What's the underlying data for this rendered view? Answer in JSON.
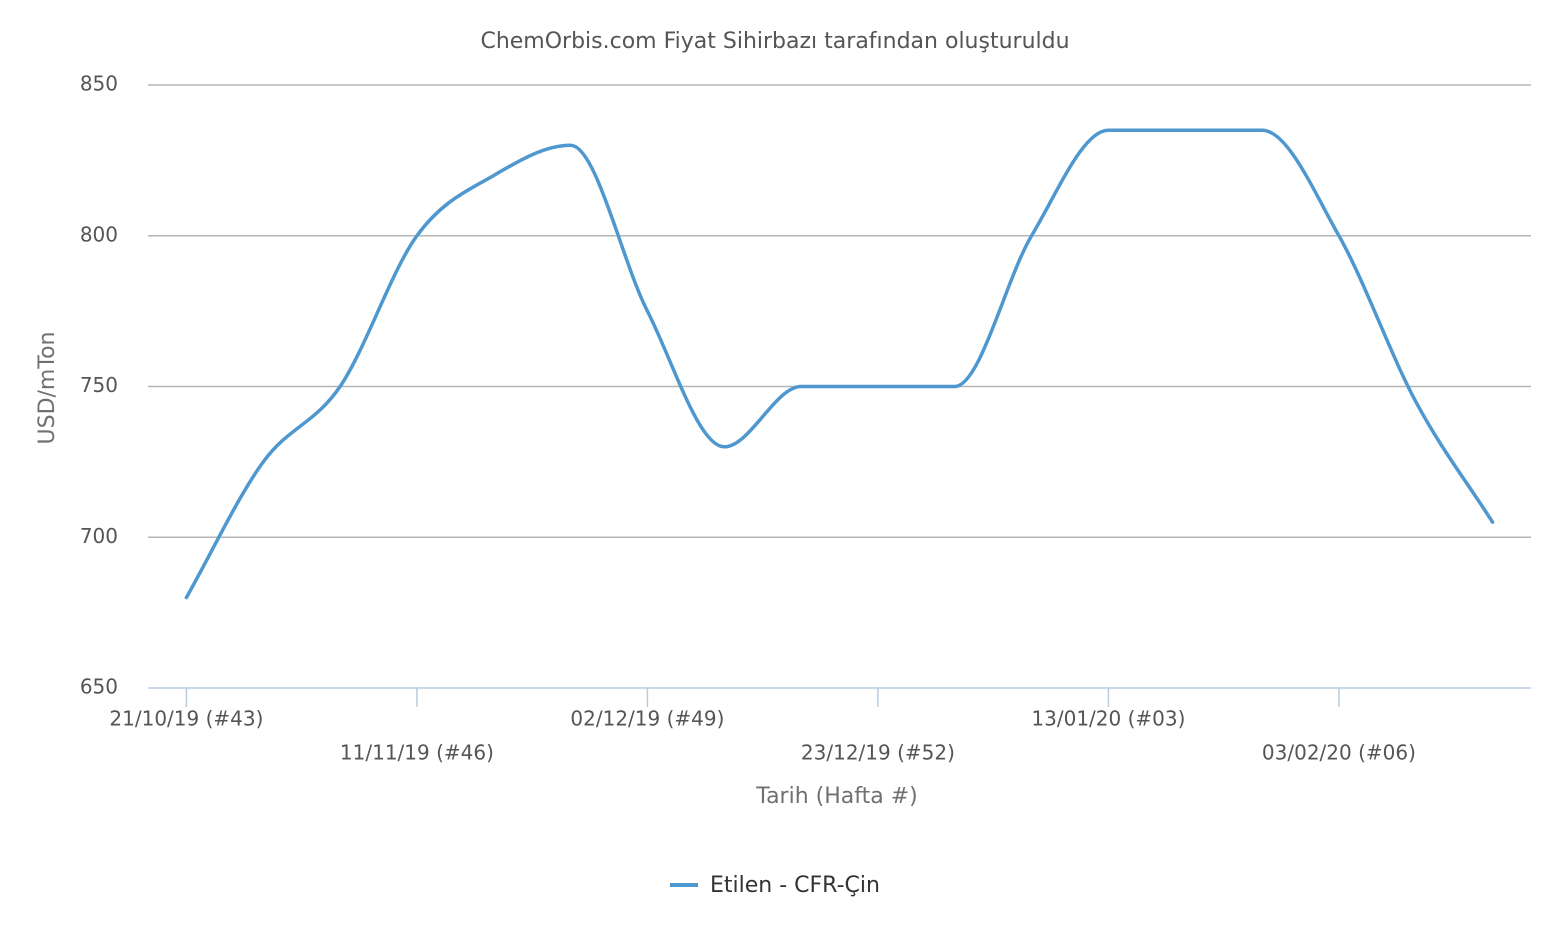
{
  "chart_data": {
    "type": "line",
    "title": "ChemOrbis.com Fiyat Sihirbazı tarafından oluşturuldu",
    "x_label": "Tarih (Hafta #)",
    "y_label": "USD/mTon",
    "categories": [
      "21/10/19 (#43)",
      null,
      null,
      "11/11/19 (#46)",
      null,
      null,
      "02/12/19 (#49)",
      null,
      null,
      "23/12/19 (#52)",
      null,
      null,
      "13/01/20 (#03)",
      null,
      null,
      "03/02/20 (#06)",
      null,
      null
    ],
    "series": [
      {
        "name": "Etilen - CFR-Çin",
        "color": "#4f98cf",
        "values": [
          680,
          725,
          750,
          800,
          820,
          830,
          775,
          730,
          750,
          750,
          750,
          800,
          835,
          835,
          835,
          800,
          745,
          705
        ]
      }
    ],
    "ylim": [
      650,
      850
    ],
    "yticks": [
      650,
      700,
      750,
      800,
      850
    ],
    "grid": true,
    "legend": "bottom"
  }
}
